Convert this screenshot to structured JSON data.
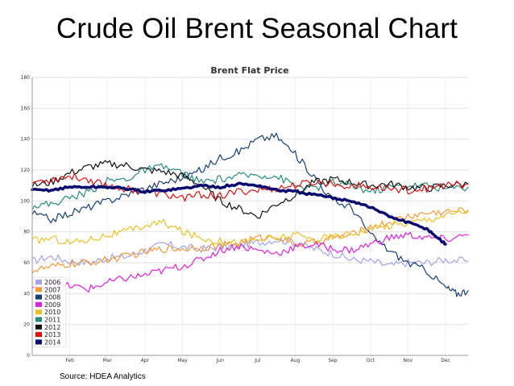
{
  "slide": {
    "title": "Crude Oil Brent Seasonal Chart",
    "source": "Source: HDEA Analytics"
  },
  "chart_data": {
    "type": "line",
    "title": "Brent Flat Price",
    "xlabel": "",
    "ylabel": "",
    "xlim": [
      0,
      11.6
    ],
    "ylim": [
      0,
      180
    ],
    "yticks": [
      0,
      20,
      40,
      60,
      80,
      100,
      120,
      140,
      160,
      180
    ],
    "xticks": [
      "Feb",
      "Mar",
      "Apr",
      "May",
      "Jun",
      "Jul",
      "Aug",
      "Sep",
      "Oct",
      "Nov",
      "Dec"
    ],
    "xtick_positions": [
      1,
      2,
      3,
      4,
      5,
      6,
      7,
      8,
      9,
      10,
      11
    ],
    "grid": true,
    "legend_position": "bottom-left",
    "series": [
      {
        "name": "2006",
        "color": "#a3a3e6",
        "width": 1.2,
        "x": [
          0,
          0.5,
          1,
          1.5,
          2,
          2.5,
          3,
          3.5,
          4,
          4.5,
          5,
          5.5,
          6,
          6.5,
          7,
          7.5,
          8,
          8.5,
          9,
          9.5,
          10,
          10.5,
          11,
          11.6
        ],
        "y": [
          61,
          64,
          61,
          60,
          63,
          64,
          68,
          72,
          70,
          69,
          70,
          71,
          73,
          75,
          73,
          69,
          66,
          62,
          61,
          58,
          60,
          60,
          62,
          61
        ]
      },
      {
        "name": "2007",
        "color": "#f29a3a",
        "width": 1.2,
        "x": [
          0,
          0.5,
          1,
          1.5,
          2,
          2.5,
          3,
          3.5,
          4,
          4.5,
          5,
          5.5,
          6,
          6.5,
          7,
          7.5,
          8,
          8.5,
          9,
          9.5,
          10,
          10.5,
          11,
          11.6
        ],
        "y": [
          55,
          57,
          59,
          60,
          62,
          64,
          67,
          69,
          69,
          70,
          71,
          73,
          76,
          77,
          72,
          73,
          76,
          78,
          83,
          86,
          90,
          92,
          93,
          94
        ]
      },
      {
        "name": "2008",
        "color": "#1a3f6e",
        "width": 1.2,
        "x": [
          0,
          0.5,
          1,
          1.5,
          2,
          2.5,
          3,
          3.5,
          4,
          4.5,
          5,
          5.5,
          6,
          6.5,
          7,
          7.5,
          8,
          8.5,
          9,
          9.5,
          10,
          10.5,
          11,
          11.3,
          11.6
        ],
        "y": [
          92,
          88,
          92,
          96,
          100,
          104,
          108,
          112,
          115,
          120,
          128,
          132,
          140,
          142,
          130,
          116,
          100,
          96,
          78,
          68,
          60,
          55,
          44,
          40,
          42
        ]
      },
      {
        "name": "2009",
        "color": "#dd22dd",
        "width": 1.2,
        "x": [
          0,
          0.5,
          1,
          1.5,
          2,
          2.5,
          3,
          3.5,
          4,
          4.5,
          5,
          5.5,
          6,
          6.5,
          7,
          7.5,
          8,
          8.5,
          9,
          9.5,
          10,
          10.5,
          11,
          11.6
        ],
        "y": [
          44,
          45,
          45,
          43,
          47,
          50,
          52,
          55,
          58,
          62,
          68,
          71,
          68,
          66,
          70,
          72,
          69,
          68,
          72,
          76,
          78,
          76,
          75,
          78
        ]
      },
      {
        "name": "2010",
        "color": "#e6c229",
        "width": 1.2,
        "x": [
          0,
          0.5,
          1,
          1.5,
          2,
          2.5,
          3,
          3.5,
          4,
          4.5,
          5,
          5.5,
          6,
          6.5,
          7,
          7.5,
          8,
          8.5,
          9,
          9.5,
          10,
          10.5,
          11,
          11.6
        ],
        "y": [
          74,
          76,
          73,
          75,
          78,
          80,
          84,
          86,
          80,
          76,
          74,
          73,
          75,
          76,
          78,
          75,
          77,
          79,
          82,
          84,
          86,
          88,
          91,
          93
        ]
      },
      {
        "name": "2011",
        "color": "#2a8a7e",
        "width": 1.2,
        "x": [
          0,
          0.5,
          1,
          1.5,
          2,
          2.5,
          3,
          3.5,
          4,
          4.5,
          5,
          5.5,
          6,
          6.5,
          7,
          7.5,
          8,
          8.5,
          9,
          9.5,
          10,
          10.5,
          11,
          11.6
        ],
        "y": [
          97,
          98,
          102,
          106,
          113,
          114,
          120,
          122,
          118,
          112,
          114,
          116,
          117,
          116,
          110,
          108,
          112,
          110,
          106,
          109,
          110,
          110,
          108,
          109
        ]
      },
      {
        "name": "2012",
        "color": "#111111",
        "width": 1.2,
        "x": [
          0,
          0.5,
          1,
          1.5,
          2,
          2.5,
          3,
          3.5,
          4,
          4.5,
          5,
          5.5,
          6,
          6.5,
          7,
          7.5,
          8,
          8.5,
          9,
          9.5,
          10,
          10.5,
          11,
          11.6
        ],
        "y": [
          110,
          112,
          118,
          122,
          124,
          123,
          120,
          119,
          116,
          110,
          100,
          95,
          90,
          98,
          104,
          112,
          114,
          112,
          110,
          111,
          109,
          108,
          110,
          111
        ]
      },
      {
        "name": "2013",
        "color": "#dd1111",
        "width": 1.2,
        "x": [
          0,
          0.5,
          1,
          1.5,
          2,
          2.5,
          3,
          3.5,
          4,
          4.5,
          5,
          5.5,
          6,
          6.5,
          7,
          7.5,
          8,
          8.5,
          9,
          9.5,
          10,
          10.5,
          11,
          11.6
        ],
        "y": [
          112,
          114,
          116,
          114,
          110,
          108,
          106,
          104,
          102,
          104,
          103,
          106,
          107,
          108,
          110,
          112,
          111,
          110,
          109,
          108,
          107,
          108,
          110,
          111
        ]
      },
      {
        "name": "2014",
        "color": "#0a0a6e",
        "width": 3.5,
        "x": [
          0,
          0.5,
          1,
          1.5,
          2,
          2.5,
          3,
          3.5,
          4,
          4.5,
          5,
          5.5,
          6,
          6.5,
          7,
          7.5,
          8,
          8.5,
          9,
          9.5,
          10,
          10.5,
          10.8,
          11.0
        ],
        "y": [
          107,
          107,
          109,
          109,
          109,
          108,
          106,
          107,
          108,
          110,
          109,
          111,
          110,
          107,
          106,
          104,
          102,
          100,
          96,
          90,
          86,
          82,
          76,
          72
        ]
      }
    ]
  }
}
